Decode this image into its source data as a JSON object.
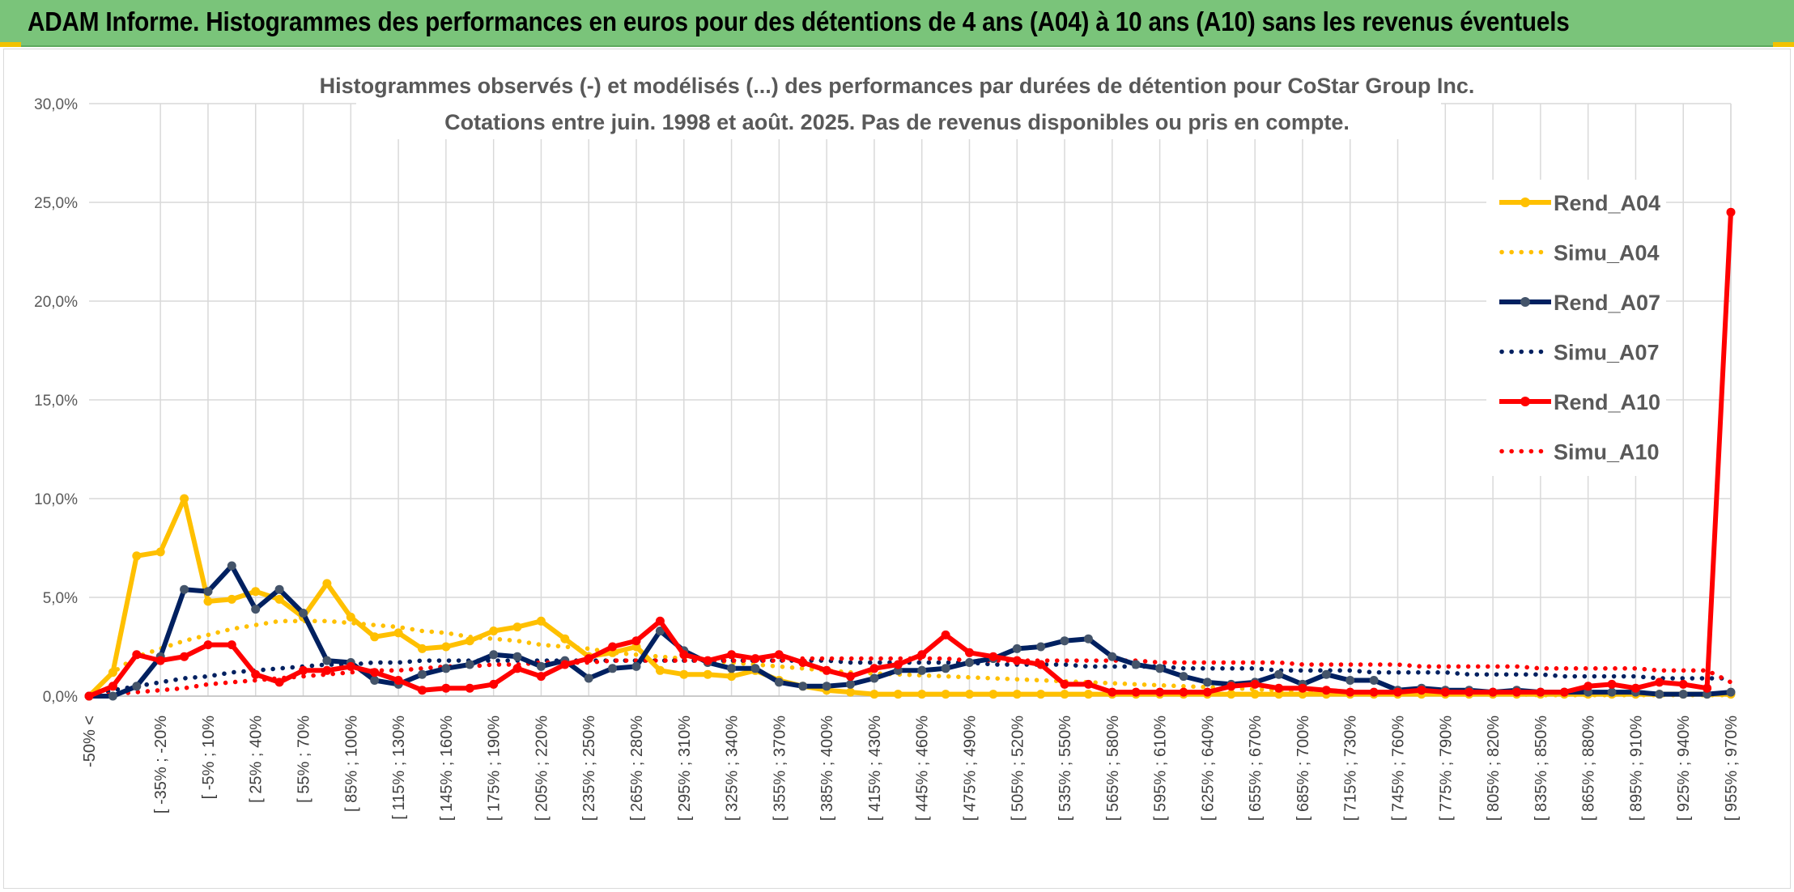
{
  "header": {
    "title": "ADAM Informe. Histogrammes des performances en euros pour des détentions de 4 ans (A04) à 10 ans (A10) sans les revenus éventuels"
  },
  "chart_data": {
    "type": "line",
    "title": "Histogrammes observés (-) et modélisés (...) des performances par durées de détention pour CoStar Group Inc.",
    "subtitle": "Cotations entre juin. 1998 et août. 2025. Pas de revenus disponibles ou pris en compte.",
    "xlabel": "",
    "ylabel": "",
    "ylim": [
      0,
      30
    ],
    "yticks": [
      "0,0%",
      "5,0%",
      "10,0%",
      "15,0%",
      "20,0%",
      "25,0%",
      "30,0%"
    ],
    "grid": true,
    "legend_position": "right",
    "x_labels_shown": [
      "-50% <",
      "[ -35% ; -20%",
      "[ -5% ; 10%",
      "[ 25% ; 40%",
      "[ 55% ; 70%",
      "[ 85% ; 100%",
      "[ 115% ; 130%",
      "[ 145% ; 160%",
      "[ 175% ; 190%",
      "[ 205% ; 220%",
      "[ 235% ; 250%",
      "[ 265% ; 280%",
      "[ 295% ; 310%",
      "[ 325% ; 340%",
      "[ 355% ; 370%",
      "[ 385% ; 400%",
      "[ 415% ; 430%",
      "[ 445% ; 460%",
      "[ 475% ; 490%",
      "[ 505% ; 520%",
      "[ 535% ; 550%",
      "[ 565% ; 580%",
      "[ 595% ; 610%",
      "[ 625% ; 640%",
      "[ 655% ; 670%",
      "[ 685% ; 700%",
      "[ 715% ; 730%",
      "[ 745% ; 760%",
      "[ 775% ; 790%",
      "[ 805% ; 820%",
      "[ 835% ; 850%",
      "[ 865% ; 880%",
      "[ 895% ; 910%",
      "[ 925% ; 940%",
      "[ 955% ; 970%"
    ],
    "point_count": 70,
    "series": [
      {
        "name": "Rend_A04",
        "style": "solid",
        "color": "#ffc000",
        "values": [
          0.0,
          1.2,
          7.1,
          7.3,
          10.0,
          4.8,
          4.9,
          5.3,
          4.9,
          4.0,
          5.7,
          4.0,
          3.0,
          3.2,
          2.4,
          2.5,
          2.8,
          3.3,
          3.5,
          3.8,
          2.9,
          2.0,
          2.2,
          2.5,
          1.3,
          1.1,
          1.1,
          1.0,
          1.3,
          0.8,
          0.5,
          0.3,
          0.2,
          0.1,
          0.1,
          0.1,
          0.1,
          0.1,
          0.1,
          0.1,
          0.1,
          0.1,
          0.1,
          0.1,
          0.1,
          0.1,
          0.1,
          0.1,
          0.1,
          0.1,
          0.1,
          0.1,
          0.1,
          0.1,
          0.1,
          0.1,
          0.1,
          0.1,
          0.1,
          0.1,
          0.1,
          0.1,
          0.1,
          0.1,
          0.1,
          0.1,
          0.1,
          0.1,
          0.1,
          0.1
        ]
      },
      {
        "name": "Simu_A04",
        "style": "dotted",
        "color": "#ffc000",
        "values": [
          0.0,
          1.2,
          2.0,
          2.4,
          2.8,
          3.1,
          3.4,
          3.6,
          3.8,
          3.8,
          3.8,
          3.7,
          3.6,
          3.5,
          3.3,
          3.2,
          3.0,
          2.9,
          2.8,
          2.6,
          2.5,
          2.4,
          2.2,
          2.1,
          2.0,
          1.9,
          1.8,
          1.7,
          1.6,
          1.5,
          1.4,
          1.3,
          1.2,
          1.15,
          1.1,
          1.05,
          1.0,
          0.95,
          0.9,
          0.85,
          0.8,
          0.75,
          0.7,
          0.65,
          0.6,
          0.55,
          0.5,
          0.45,
          0.4,
          0.35,
          0.3,
          0.25,
          0.2,
          0.2,
          0.15,
          0.15,
          0.1,
          0.1,
          0.1,
          0.1,
          0.1,
          0.05,
          0.05,
          0.05,
          0.05,
          0.05,
          0.05,
          0.05,
          0.05,
          0.05
        ]
      },
      {
        "name": "Rend_A07",
        "style": "solid",
        "color": "#002060",
        "values": [
          0.0,
          0.0,
          0.5,
          2.0,
          5.4,
          5.3,
          6.6,
          4.4,
          5.4,
          4.2,
          1.8,
          1.7,
          0.8,
          0.6,
          1.1,
          1.4,
          1.6,
          2.1,
          2.0,
          1.5,
          1.8,
          0.9,
          1.4,
          1.5,
          3.3,
          2.3,
          1.7,
          1.4,
          1.4,
          0.7,
          0.5,
          0.5,
          0.6,
          0.9,
          1.3,
          1.3,
          1.4,
          1.7,
          1.9,
          2.4,
          2.5,
          2.8,
          2.9,
          2.0,
          1.6,
          1.4,
          1.0,
          0.7,
          0.6,
          0.7,
          1.1,
          0.6,
          1.1,
          0.8,
          0.8,
          0.3,
          0.4,
          0.3,
          0.3,
          0.2,
          0.3,
          0.2,
          0.2,
          0.2,
          0.2,
          0.2,
          0.1,
          0.1,
          0.1,
          0.2
        ]
      },
      {
        "name": "Simu_A07",
        "style": "dotted",
        "color": "#002060",
        "values": [
          0.0,
          0.3,
          0.5,
          0.7,
          0.9,
          1.0,
          1.2,
          1.3,
          1.4,
          1.5,
          1.6,
          1.6,
          1.7,
          1.7,
          1.8,
          1.8,
          1.8,
          1.8,
          1.8,
          1.8,
          1.8,
          1.8,
          1.8,
          1.8,
          1.8,
          1.8,
          1.8,
          1.8,
          1.8,
          1.8,
          1.8,
          1.8,
          1.7,
          1.7,
          1.7,
          1.7,
          1.7,
          1.7,
          1.6,
          1.6,
          1.6,
          1.6,
          1.5,
          1.5,
          1.5,
          1.5,
          1.4,
          1.4,
          1.4,
          1.4,
          1.3,
          1.3,
          1.3,
          1.3,
          1.2,
          1.2,
          1.2,
          1.2,
          1.1,
          1.1,
          1.1,
          1.1,
          1.0,
          1.0,
          1.0,
          1.0,
          0.9,
          0.9,
          0.9,
          0.9
        ]
      },
      {
        "name": "Rend_A10",
        "style": "solid",
        "color": "#ff0000",
        "values": [
          0.0,
          0.5,
          2.1,
          1.8,
          2.0,
          2.6,
          2.6,
          1.1,
          0.7,
          1.3,
          1.3,
          1.5,
          1.2,
          0.8,
          0.3,
          0.4,
          0.4,
          0.6,
          1.4,
          1.0,
          1.6,
          1.9,
          2.5,
          2.8,
          3.8,
          2.1,
          1.8,
          2.1,
          1.9,
          2.1,
          1.7,
          1.3,
          1.0,
          1.4,
          1.6,
          2.1,
          3.1,
          2.2,
          2.0,
          1.8,
          1.6,
          0.6,
          0.6,
          0.2,
          0.2,
          0.2,
          0.2,
          0.2,
          0.5,
          0.6,
          0.4,
          0.4,
          0.3,
          0.2,
          0.2,
          0.2,
          0.3,
          0.2,
          0.2,
          0.2,
          0.2,
          0.2,
          0.2,
          0.5,
          0.6,
          0.4,
          0.7,
          0.6,
          0.4,
          24.5
        ]
      },
      {
        "name": "Simu_A10",
        "style": "dotted",
        "color": "#ff0000",
        "values": [
          0.0,
          0.1,
          0.2,
          0.3,
          0.4,
          0.6,
          0.7,
          0.8,
          0.9,
          1.0,
          1.1,
          1.2,
          1.3,
          1.3,
          1.4,
          1.5,
          1.5,
          1.6,
          1.6,
          1.7,
          1.7,
          1.7,
          1.8,
          1.8,
          1.8,
          1.8,
          1.8,
          1.8,
          1.8,
          1.8,
          1.9,
          1.9,
          1.9,
          1.9,
          1.9,
          1.9,
          1.9,
          1.8,
          1.8,
          1.8,
          1.8,
          1.8,
          1.8,
          1.8,
          1.8,
          1.7,
          1.7,
          1.7,
          1.7,
          1.7,
          1.7,
          1.6,
          1.6,
          1.6,
          1.6,
          1.6,
          1.5,
          1.5,
          1.5,
          1.5,
          1.5,
          1.4,
          1.4,
          1.4,
          1.4,
          1.4,
          1.3,
          1.3,
          1.3,
          0.7
        ]
      }
    ]
  }
}
